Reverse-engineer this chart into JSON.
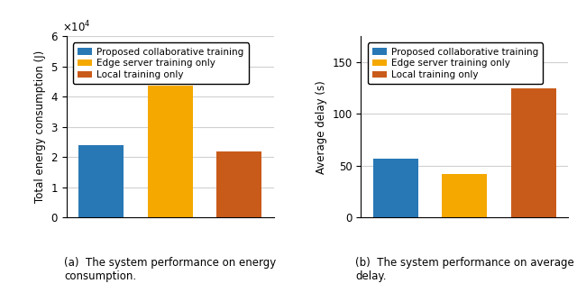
{
  "left_bars": {
    "values": [
      24000,
      43500,
      22000
    ],
    "colors": [
      "#2878b5",
      "#f5a800",
      "#c95b1a"
    ],
    "ylabel": "Total energy consumption (J)",
    "ylim": [
      0,
      60000
    ],
    "yticks": [
      0,
      10000,
      20000,
      30000,
      40000,
      50000,
      60000
    ],
    "scale": 10000,
    "caption_line1": "(a)  The system performance on energy",
    "caption_line2": "consumption."
  },
  "right_bars": {
    "values": [
      57,
      42,
      125
    ],
    "colors": [
      "#2878b5",
      "#f5a800",
      "#c95b1a"
    ],
    "ylabel": "Average delay (s)",
    "ylim": [
      0,
      175
    ],
    "yticks": [
      0,
      50,
      100,
      150
    ],
    "caption_line1": "(b)  The system performance on average",
    "caption_line2": "delay."
  },
  "legend_labels": [
    "Proposed collaborative training",
    "Edge server training only",
    "Local training only"
  ],
  "legend_colors": [
    "#2878b5",
    "#f5a800",
    "#c95b1a"
  ],
  "x_positions": [
    1,
    2,
    3
  ],
  "bar_width": 0.65,
  "caption_fontsize": 8.5,
  "tick_fontsize": 8.5,
  "label_fontsize": 8.5,
  "legend_fontsize": 7.5
}
